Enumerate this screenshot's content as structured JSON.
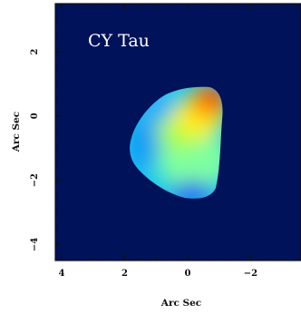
{
  "figure": {
    "title": "CY Tau",
    "xlabel": "Arc Sec",
    "ylabel": "Arc Sec",
    "x_range": [
      4.2,
      -3.6
    ],
    "y_range": [
      -4.5,
      3.5
    ],
    "x_ticks": [
      4,
      2,
      0,
      -2
    ],
    "x_tick_labels": [
      "4",
      "2",
      "0",
      "−2"
    ],
    "y_ticks": [
      2,
      0,
      -2,
      -4
    ],
    "y_tick_labels": [
      "2",
      "0",
      "−2",
      "−4"
    ],
    "minor_tick_step": 0.5,
    "background_color": "#001259",
    "colormap": "jet"
  }
}
